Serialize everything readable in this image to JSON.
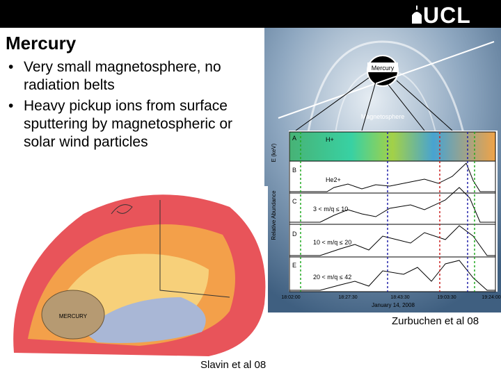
{
  "header": {
    "logo": "UCL"
  },
  "slide": {
    "title": "Mercury",
    "bullets": [
      "Very small magnetosphere, no radiation belts",
      "Heavy pickup ions from surface sputtering  by magnetospheric or solar wind particles"
    ]
  },
  "figures": [
    {
      "caption": "Zurbuchen et al 08",
      "labels": {
        "planet": "Mercury",
        "region": "Magnetosphere",
        "energy_axis": "E (keV)",
        "abundance_axis": "Relative Abundance",
        "date": "January 14, 2008"
      },
      "panels": [
        {
          "letter": "A",
          "label": "H+"
        },
        {
          "letter": "B",
          "label": "He2+"
        },
        {
          "letter": "C",
          "label": "3 < m/q ≤ 10"
        },
        {
          "letter": "D",
          "label": "10 < m/q ≤ 20"
        },
        {
          "letter": "E",
          "label": "20 < m/q ≤ 42"
        }
      ],
      "times": [
        "18:02:00",
        "18:27:30",
        "18:43:30",
        "19:03:30",
        "19:24:00"
      ]
    },
    {
      "caption": "Slavin et al 08",
      "labels": {
        "planet": "MERCURY"
      }
    }
  ]
}
